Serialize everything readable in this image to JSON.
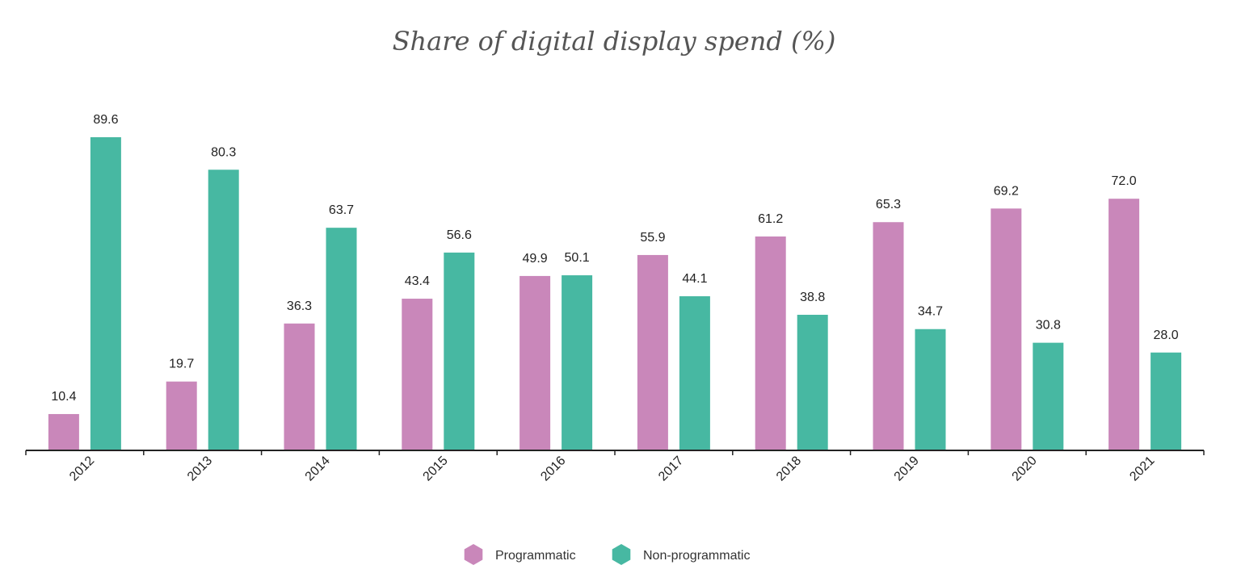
{
  "chart_data": {
    "type": "bar",
    "title": "Share of digital display spend (%)",
    "xlabel": "",
    "ylabel": "",
    "categories": [
      "2012",
      "2013",
      "2014",
      "2015",
      "2016",
      "2017",
      "2018",
      "2019",
      "2020",
      "2021"
    ],
    "series": [
      {
        "name": "Programmatic",
        "color": "#c987ba",
        "values": [
          10.4,
          19.7,
          36.3,
          43.4,
          49.9,
          55.9,
          61.2,
          65.3,
          69.2,
          72.0
        ],
        "labels": [
          "10.4",
          "19.7",
          "36.3",
          "43.4",
          "49.9",
          "55.9",
          "61.2",
          "65.3",
          "69.2",
          "72.0"
        ]
      },
      {
        "name": "Non-programmatic",
        "color": "#47b8a2",
        "values": [
          89.6,
          80.3,
          63.7,
          56.6,
          50.1,
          44.1,
          38.8,
          34.7,
          30.8,
          28.0
        ],
        "labels": [
          "89.6",
          "80.3",
          "63.7",
          "56.6",
          "50.1",
          "44.1",
          "38.8",
          "34.7",
          "30.8",
          "28.0"
        ]
      }
    ],
    "ylim": [
      0,
      100
    ],
    "grid": false,
    "legend": "bottom-center",
    "legend_marker": "hexagon-icon"
  }
}
